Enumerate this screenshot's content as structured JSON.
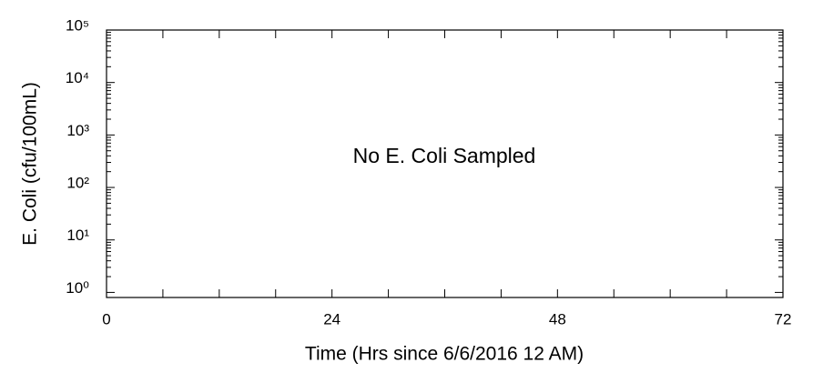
{
  "chart_data": {
    "type": "line",
    "xlabel": "Time (Hrs since 6/6/2016 12 AM)",
    "ylabel": "E. Coli (cfu/100mL)",
    "annotation": "No E. Coli Sampled",
    "series": [],
    "xlim": [
      0,
      72
    ],
    "xticks": [
      0,
      24,
      48,
      72
    ],
    "ylim": [
      0.8,
      100000
    ],
    "yticks": [
      {
        "value": 1,
        "label": "10⁰"
      },
      {
        "value": 10,
        "label": "10¹"
      },
      {
        "value": 100,
        "label": "10²"
      },
      {
        "value": 1000,
        "label": "10³"
      },
      {
        "value": 10000,
        "label": "10⁴"
      },
      {
        "value": 100000,
        "label": "10⁵"
      }
    ],
    "yscale": "log",
    "grid": false
  }
}
